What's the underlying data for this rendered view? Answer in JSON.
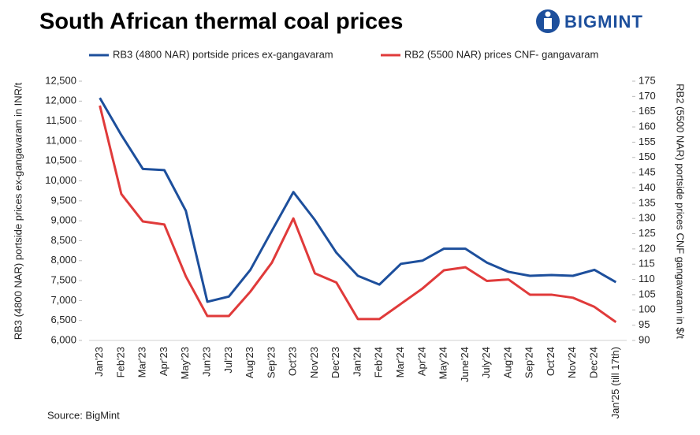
{
  "chart_data": {
    "type": "line",
    "title": "South African thermal coal prices",
    "brand": "BIGMINT",
    "source": "Source: BigMint",
    "y_label": "RB3 (4800 NAR) portside prices ex-gangavaram in INR/t",
    "y2_label": "RB2 (5500 NAR) portside prices CNF gangavaram in $/t",
    "categories": [
      "Jan'23",
      "Feb'23",
      "Mar'23",
      "Apr'23",
      "May'23",
      "Jun'23",
      "Jul'23",
      "Aug'23",
      "Sep'23",
      "Oct'23",
      "Nov'23",
      "Dec'23",
      "Jan'24",
      "Feb'24",
      "Mar'24",
      "Apr'24",
      "May'24",
      "June'24",
      "July'24",
      "Aug'24",
      "Sep'24",
      "Oct'24",
      "Nov'24",
      "Dec'24",
      "Jan'25 (till 17th)"
    ],
    "series": [
      {
        "name": "RB3 (4800 NAR) portside prices ex-gangavaram",
        "color": "#1d4f9c",
        "axis": "y",
        "values": [
          12080,
          11150,
          10300,
          10270,
          9250,
          6970,
          7100,
          7770,
          8750,
          9720,
          9020,
          8200,
          7620,
          7400,
          7920,
          8000,
          8300,
          8300,
          7950,
          7720,
          7620,
          7640,
          7620,
          7770,
          7460
        ]
      },
      {
        "name": "RB2 (5500 NAR) prices CNF- gangavaram",
        "color": "#e03a3a",
        "axis": "y2",
        "values": [
          167,
          138,
          129,
          128,
          111,
          98,
          98,
          106,
          115.5,
          130,
          112,
          109,
          97,
          97,
          102,
          107,
          113,
          114,
          109.5,
          110,
          105,
          105,
          104,
          101,
          96
        ]
      }
    ],
    "ylim": [
      6000,
      12500
    ],
    "yticks": [
      {
        "value": 6000,
        "label": "6,000"
      },
      {
        "value": 6500,
        "label": "6,500"
      },
      {
        "value": 7000,
        "label": "7,000"
      },
      {
        "value": 7500,
        "label": "7,500"
      },
      {
        "value": 8000,
        "label": "8,000"
      },
      {
        "value": 8500,
        "label": "8,500"
      },
      {
        "value": 9000,
        "label": "9,000"
      },
      {
        "value": 9500,
        "label": "9,500"
      },
      {
        "value": 10000,
        "label": "10,000"
      },
      {
        "value": 10500,
        "label": "10,500"
      },
      {
        "value": 11000,
        "label": "11,000"
      },
      {
        "value": 11500,
        "label": "11,500"
      },
      {
        "value": 12000,
        "label": "12,000"
      },
      {
        "value": 12500,
        "label": "12,500"
      }
    ],
    "y2lim": [
      90,
      175
    ],
    "y2ticks": [
      90,
      95,
      100,
      105,
      110,
      115,
      120,
      125,
      130,
      135,
      140,
      145,
      150,
      155,
      160,
      165,
      170,
      175
    ],
    "grid": false
  }
}
